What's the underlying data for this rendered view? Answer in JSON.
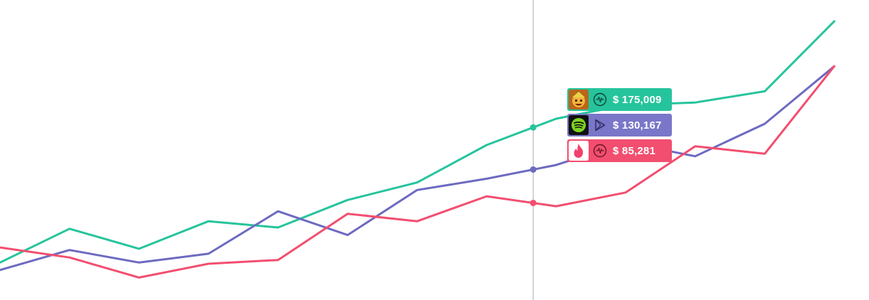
{
  "chart_data": {
    "type": "line",
    "x": [
      1,
      2,
      3,
      4,
      5,
      6,
      7,
      8,
      9,
      10,
      11,
      12,
      13
    ],
    "xlim": [
      1,
      13.5
    ],
    "ylim": [
      0,
      240000
    ],
    "grid": false,
    "legend": "none",
    "series": [
      {
        "color": "#26c49c",
        "values": [
          30000,
          57000,
          41000,
          63000,
          58000,
          80000,
          94000,
          124000,
          145000,
          156000,
          158000,
          167000,
          223000
        ]
      },
      {
        "color": "#6d6ac0",
        "values": [
          24000,
          40000,
          30000,
          37000,
          71000,
          52000,
          88000,
          97000,
          108000,
          126000,
          115000,
          141000,
          187000
        ]
      },
      {
        "color": "#f24e6f",
        "values": [
          42000,
          34000,
          18000,
          29000,
          32000,
          69000,
          63000,
          83000,
          75000,
          86000,
          123000,
          117000,
          187000
        ]
      }
    ],
    "crosshair": {
      "x": 8.67
    }
  },
  "tooltip": {
    "entries": [
      {
        "value": "$ 175,009",
        "color": "#26c49c",
        "app_icon": "clash-of-clans-icon",
        "store_icon": "app-store-icon"
      },
      {
        "value": "$ 130,167",
        "color": "#7a76c9",
        "app_icon": "spotify-icon",
        "store_icon": "google-play-icon"
      },
      {
        "value": "$ 85,281",
        "color": "#f24e6f",
        "app_icon": "tinder-icon",
        "store_icon": "app-store-icon"
      }
    ]
  }
}
